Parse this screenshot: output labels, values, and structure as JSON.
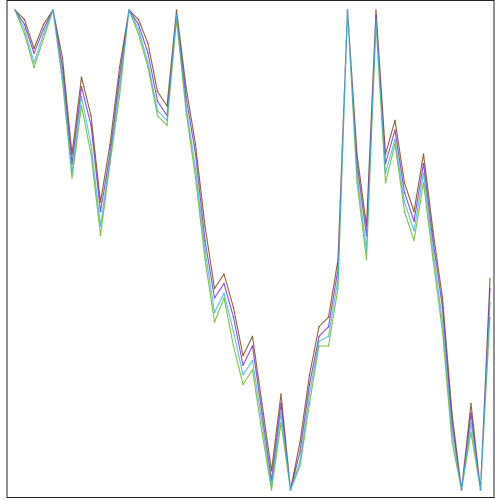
{
  "chart_data": {
    "type": "line",
    "title": "",
    "xlabel": "",
    "ylabel": "",
    "grid": false,
    "legend": "none",
    "xlim": [
      0,
      100
    ],
    "ylim": [
      0,
      100
    ],
    "x": [
      0,
      2,
      4,
      6,
      8,
      10,
      12,
      14,
      16,
      18,
      20,
      22,
      24,
      26,
      28,
      30,
      32,
      34,
      36,
      38,
      40,
      42,
      44,
      46,
      48,
      50,
      52,
      54,
      56,
      58,
      60,
      62,
      64,
      66,
      68,
      70,
      72,
      74,
      76,
      78,
      80,
      82,
      84,
      86,
      88,
      90,
      92,
      94,
      96,
      98,
      100
    ],
    "series": [
      {
        "color": "#7a4a12",
        "values": [
          100,
          98,
          92,
          97,
          100,
          90,
          70,
          86,
          78,
          60,
          72,
          88,
          100,
          98,
          93,
          83,
          80,
          100,
          84,
          72,
          55,
          42,
          45,
          38,
          28,
          32,
          18,
          4,
          20,
          0,
          10,
          24,
          34,
          36,
          48,
          100,
          70,
          55,
          100,
          70,
          77,
          64,
          58,
          70,
          54,
          40,
          16,
          0,
          18,
          0,
          44
        ]
      },
      {
        "color": "#6ab82a",
        "values": [
          100,
          95,
          88,
          94,
          100,
          85,
          65,
          80,
          70,
          53,
          68,
          82,
          100,
          95,
          88,
          78,
          76,
          98,
          79,
          65,
          48,
          35,
          40,
          30,
          22,
          25,
          12,
          0,
          14,
          0,
          5,
          18,
          30,
          30,
          42,
          100,
          64,
          48,
          97,
          64,
          72,
          58,
          52,
          64,
          48,
          33,
          10,
          0,
          12,
          0,
          36
        ]
      },
      {
        "color": "#7b2fd0",
        "values": [
          100,
          97,
          91,
          96,
          100,
          88,
          68,
          84,
          76,
          58,
          70,
          86,
          100,
          97,
          91,
          81,
          78,
          99,
          82,
          70,
          52,
          40,
          43,
          36,
          26,
          30,
          16,
          2,
          18,
          0,
          8,
          22,
          32,
          34,
          46,
          100,
          68,
          53,
          99,
          68,
          75,
          62,
          56,
          68,
          52,
          38,
          14,
          0,
          16,
          0,
          42
        ]
      },
      {
        "color": "#3fb7d8",
        "values": [
          100,
          96,
          89,
          95,
          100,
          86,
          66,
          82,
          72,
          55,
          69,
          84,
          100,
          96,
          89,
          79,
          77,
          99,
          80,
          67,
          50,
          37,
          41,
          33,
          24,
          27,
          14,
          1,
          16,
          0,
          6,
          20,
          31,
          32,
          44,
          100,
          66,
          50,
          98,
          66,
          73,
          60,
          54,
          66,
          50,
          35,
          12,
          0,
          14,
          0,
          39
        ]
      }
    ]
  }
}
